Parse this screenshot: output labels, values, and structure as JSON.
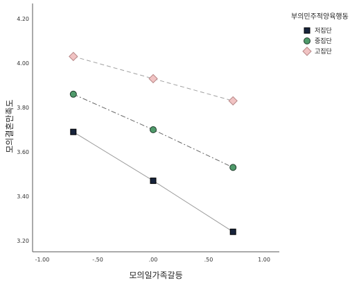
{
  "chart_data": {
    "type": "line",
    "xlabel": "모의일가족갈등",
    "ylabel": "모의결혼만족도",
    "xlim": [
      -1.0,
      1.0
    ],
    "ylim": [
      3.2,
      4.2
    ],
    "xticks": [
      -1.0,
      -0.5,
      0.0,
      0.5,
      1.0
    ],
    "xtick_labels": [
      "-1.00",
      "-.50",
      ".00",
      ".50",
      "1.00"
    ],
    "yticks": [
      3.2,
      3.4,
      3.6,
      3.8,
      4.0,
      4.2
    ],
    "ytick_labels": [
      "3.20",
      "3.40",
      "3.60",
      "3.80",
      "4.00",
      "4.20"
    ],
    "x": [
      -0.72,
      0.0,
      0.72
    ],
    "grid": false,
    "legend_position": "top-right",
    "legend_title": "부의민주적양육행동",
    "series": [
      {
        "name": "저집단",
        "values": [
          3.69,
          3.47,
          3.24
        ],
        "marker": "square",
        "fill": "#17243c",
        "stroke": "#000000",
        "line_color": "#9a9a9a",
        "dash": ""
      },
      {
        "name": "중집단",
        "values": [
          3.86,
          3.7,
          3.53
        ],
        "marker": "circle",
        "fill": "#4f9a6a",
        "stroke": "#1f3a2a",
        "line_color": "#666666",
        "dash": "7 3 2 3"
      },
      {
        "name": "고집단",
        "values": [
          4.03,
          3.93,
          3.83
        ],
        "marker": "diamond",
        "fill": "#f1c3c3",
        "stroke": "#b88888",
        "line_color": "#a0a0a0",
        "dash": "6 4"
      }
    ]
  }
}
